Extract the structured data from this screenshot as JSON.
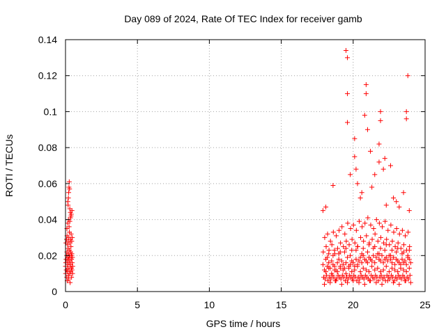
{
  "chart_data": {
    "type": "scatter",
    "title": "Day 089 of 2024, Rate Of TEC Index for receiver gamb",
    "xlabel": "GPS time / hours",
    "ylabel": "ROTI / TECUs",
    "xlim": [
      0,
      25
    ],
    "ylim": [
      0,
      0.14
    ],
    "xticks": [
      0,
      5,
      10,
      15,
      20,
      25
    ],
    "xtick_labels": [
      "0",
      "5",
      "10",
      "15",
      "20",
      "25"
    ],
    "yticks": [
      0,
      0.02,
      0.04,
      0.06,
      0.08,
      0.1,
      0.12,
      0.14
    ],
    "ytick_labels": [
      "0",
      "0.02",
      "0.04",
      "0.06",
      "0.08",
      "0.1",
      "0.12",
      "0.14"
    ],
    "grid": true,
    "marker": "+",
    "color": "#ff0000",
    "series": [
      {
        "name": "ROTI",
        "x": [
          0.0,
          0.02,
          0.04,
          0.06,
          0.08,
          0.1,
          0.12,
          0.14,
          0.16,
          0.18,
          0.2,
          0.22,
          0.24,
          0.26,
          0.28,
          0.3,
          0.32,
          0.34,
          0.36,
          0.38,
          0.4,
          0.42,
          0.44,
          0.46,
          0.48,
          0.5,
          0.01,
          0.05,
          0.09,
          0.13,
          0.17,
          0.21,
          0.25,
          0.29,
          0.33,
          0.37,
          0.41,
          0.45,
          0.49,
          0.03,
          0.07,
          0.11,
          0.15,
          0.19,
          0.23,
          0.27,
          0.31,
          0.35,
          0.39,
          0.43,
          0.47,
          0.1,
          0.15,
          0.2,
          0.25,
          0.3,
          0.35,
          0.4,
          0.45,
          0.12,
          0.22,
          0.32,
          0.42,
          0.18,
          0.2,
          0.22,
          0.24,
          0.26,
          0.16,
          0.28,
          0.3,
          0.34,
          0.38,
          17.9,
          18.0,
          18.1,
          18.2,
          18.3,
          18.4,
          18.5,
          18.6,
          18.7,
          18.8,
          18.9,
          19.0,
          19.1,
          19.2,
          19.3,
          19.4,
          19.5,
          19.6,
          19.7,
          19.8,
          19.9,
          20.0,
          20.1,
          20.2,
          20.3,
          20.4,
          20.5,
          20.6,
          20.7,
          20.8,
          20.9,
          21.0,
          21.1,
          21.2,
          21.3,
          21.4,
          21.5,
          21.6,
          21.7,
          21.8,
          21.9,
          22.0,
          22.1,
          22.2,
          22.3,
          22.4,
          22.5,
          22.6,
          22.7,
          22.8,
          22.9,
          23.0,
          23.1,
          23.2,
          23.3,
          23.4,
          23.5,
          23.6,
          23.7,
          23.8,
          23.9,
          24.0,
          17.95,
          18.05,
          18.15,
          18.25,
          18.35,
          18.45,
          18.55,
          18.65,
          18.75,
          18.85,
          18.95,
          19.05,
          19.15,
          19.25,
          19.35,
          19.45,
          19.55,
          19.65,
          19.75,
          19.85,
          19.95,
          20.05,
          20.15,
          20.25,
          20.35,
          20.45,
          20.55,
          20.65,
          20.75,
          20.85,
          20.95,
          21.05,
          21.15,
          21.25,
          21.35,
          21.45,
          21.55,
          21.65,
          21.75,
          21.85,
          21.95,
          22.05,
          22.15,
          22.25,
          22.35,
          22.45,
          22.55,
          22.65,
          22.75,
          22.85,
          22.95,
          23.05,
          23.15,
          23.25,
          23.35,
          23.45,
          23.55,
          23.65,
          23.75,
          23.85,
          23.95,
          17.92,
          18.12,
          18.32,
          18.52,
          18.72,
          18.92,
          19.12,
          19.32,
          19.52,
          19.72,
          19.92,
          20.12,
          20.32,
          20.52,
          20.72,
          20.92,
          21.12,
          21.32,
          21.52,
          21.72,
          21.92,
          22.12,
          22.32,
          22.52,
          22.72,
          22.92,
          23.12,
          23.32,
          23.52,
          23.72,
          23.92,
          18.02,
          18.22,
          18.42,
          18.62,
          18.82,
          19.02,
          19.22,
          19.42,
          19.62,
          19.82,
          20.02,
          20.22,
          20.42,
          20.62,
          20.82,
          21.02,
          21.22,
          21.42,
          21.62,
          21.82,
          22.02,
          22.22,
          22.42,
          22.62,
          22.82,
          23.02,
          23.22,
          23.42,
          23.62,
          23.82,
          18.1,
          18.3,
          18.5,
          18.7,
          18.9,
          19.1,
          19.3,
          19.5,
          19.7,
          19.9,
          20.1,
          20.3,
          20.5,
          20.7,
          20.9,
          21.1,
          21.3,
          21.5,
          21.7,
          21.9,
          22.1,
          22.3,
          22.5,
          22.7,
          22.9,
          23.1,
          23.3,
          23.5,
          23.7,
          23.9,
          18.0,
          18.4,
          18.8,
          19.2,
          19.6,
          20.0,
          20.4,
          20.8,
          21.2,
          21.6,
          22.0,
          22.4,
          22.8,
          23.2,
          23.6,
          24.0,
          18.3,
          18.7,
          19.1,
          19.5,
          19.9,
          20.3,
          20.7,
          21.1,
          21.5,
          21.9,
          22.3,
          22.7,
          23.1,
          23.5,
          23.9,
          18.2,
          18.6,
          19.0,
          19.4,
          19.8,
          20.2,
          20.6,
          21.0,
          21.4,
          21.8,
          22.2,
          22.6,
          23.0,
          23.4,
          23.8,
          17.9,
          18.1,
          18.6,
          19.6,
          19.6,
          20.1,
          20.1,
          20.6,
          20.9,
          20.9,
          21.0,
          21.3,
          21.8,
          21.9,
          21.9,
          22.1,
          22.2,
          23.7,
          23.8,
          19.5,
          19.6,
          19.8,
          20.2,
          20.3,
          20.5,
          20.8,
          21.2,
          21.5,
          21.8,
          22.3,
          22.6,
          22.8,
          23.0,
          23.2,
          23.5,
          23.7,
          23.9
        ],
        "y": [
          0.014,
          0.016,
          0.018,
          0.012,
          0.02,
          0.022,
          0.017,
          0.015,
          0.019,
          0.024,
          0.021,
          0.018,
          0.016,
          0.02,
          0.023,
          0.019,
          0.017,
          0.015,
          0.022,
          0.025,
          0.02,
          0.018,
          0.021,
          0.016,
          0.019,
          0.014,
          0.01,
          0.012,
          0.008,
          0.011,
          0.013,
          0.009,
          0.012,
          0.01,
          0.014,
          0.011,
          0.013,
          0.012,
          0.01,
          0.027,
          0.029,
          0.031,
          0.026,
          0.028,
          0.03,
          0.033,
          0.027,
          0.029,
          0.032,
          0.028,
          0.03,
          0.035,
          0.038,
          0.04,
          0.036,
          0.039,
          0.041,
          0.043,
          0.045,
          0.006,
          0.007,
          0.005,
          0.008,
          0.048,
          0.052,
          0.055,
          0.058,
          0.061,
          0.05,
          0.057,
          0.046,
          0.044,
          0.042,
          0.015,
          0.012,
          0.018,
          0.014,
          0.016,
          0.013,
          0.017,
          0.015,
          0.014,
          0.012,
          0.016,
          0.018,
          0.014,
          0.017,
          0.015,
          0.013,
          0.016,
          0.019,
          0.014,
          0.015,
          0.017,
          0.016,
          0.014,
          0.018,
          0.015,
          0.017,
          0.019,
          0.016,
          0.02,
          0.018,
          0.017,
          0.016,
          0.019,
          0.018,
          0.017,
          0.02,
          0.016,
          0.019,
          0.021,
          0.018,
          0.017,
          0.02,
          0.016,
          0.018,
          0.019,
          0.017,
          0.02,
          0.018,
          0.016,
          0.019,
          0.015,
          0.018,
          0.017,
          0.016,
          0.015,
          0.018,
          0.016,
          0.017,
          0.015,
          0.019,
          0.018,
          0.016,
          0.008,
          0.007,
          0.009,
          0.006,
          0.008,
          0.007,
          0.009,
          0.008,
          0.006,
          0.007,
          0.009,
          0.008,
          0.007,
          0.009,
          0.008,
          0.006,
          0.008,
          0.007,
          0.009,
          0.008,
          0.007,
          0.009,
          0.008,
          0.006,
          0.008,
          0.007,
          0.009,
          0.008,
          0.007,
          0.009,
          0.008,
          0.007,
          0.006,
          0.009,
          0.008,
          0.007,
          0.009,
          0.008,
          0.006,
          0.008,
          0.009,
          0.007,
          0.008,
          0.006,
          0.009,
          0.008,
          0.007,
          0.009,
          0.008,
          0.006,
          0.008,
          0.007,
          0.009,
          0.008,
          0.007,
          0.009,
          0.008,
          0.006,
          0.008,
          0.007,
          0.009,
          0.022,
          0.025,
          0.023,
          0.026,
          0.021,
          0.024,
          0.027,
          0.025,
          0.028,
          0.026,
          0.029,
          0.027,
          0.025,
          0.03,
          0.028,
          0.031,
          0.027,
          0.029,
          0.032,
          0.028,
          0.03,
          0.027,
          0.029,
          0.026,
          0.028,
          0.025,
          0.027,
          0.024,
          0.026,
          0.023,
          0.025,
          0.03,
          0.032,
          0.028,
          0.033,
          0.031,
          0.034,
          0.036,
          0.032,
          0.038,
          0.035,
          0.037,
          0.034,
          0.039,
          0.036,
          0.038,
          0.041,
          0.037,
          0.035,
          0.04,
          0.038,
          0.036,
          0.039,
          0.034,
          0.037,
          0.033,
          0.035,
          0.032,
          0.034,
          0.031,
          0.033,
          0.011,
          0.013,
          0.01,
          0.012,
          0.011,
          0.013,
          0.012,
          0.01,
          0.013,
          0.011,
          0.012,
          0.014,
          0.011,
          0.013,
          0.012,
          0.011,
          0.014,
          0.012,
          0.013,
          0.011,
          0.012,
          0.014,
          0.011,
          0.013,
          0.012,
          0.011,
          0.013,
          0.012,
          0.011,
          0.013,
          0.004,
          0.005,
          0.006,
          0.004,
          0.005,
          0.006,
          0.005,
          0.004,
          0.006,
          0.005,
          0.004,
          0.006,
          0.005,
          0.004,
          0.006,
          0.005,
          0.021,
          0.023,
          0.022,
          0.024,
          0.023,
          0.025,
          0.024,
          0.026,
          0.025,
          0.024,
          0.026,
          0.023,
          0.024,
          0.022,
          0.023,
          0.019,
          0.02,
          0.021,
          0.022,
          0.02,
          0.023,
          0.021,
          0.022,
          0.024,
          0.021,
          0.023,
          0.02,
          0.022,
          0.021,
          0.02,
          0.045,
          0.047,
          0.059,
          0.11,
          0.13,
          0.075,
          0.085,
          0.055,
          0.11,
          0.115,
          0.09,
          0.058,
          0.072,
          0.095,
          0.1,
          0.068,
          0.074,
          0.1,
          0.12,
          0.134,
          0.094,
          0.065,
          0.068,
          0.06,
          0.052,
          0.098,
          0.078,
          0.065,
          0.082,
          0.048,
          0.07,
          0.052,
          0.05,
          0.047,
          0.055,
          0.096,
          0.045
        ]
      }
    ]
  }
}
